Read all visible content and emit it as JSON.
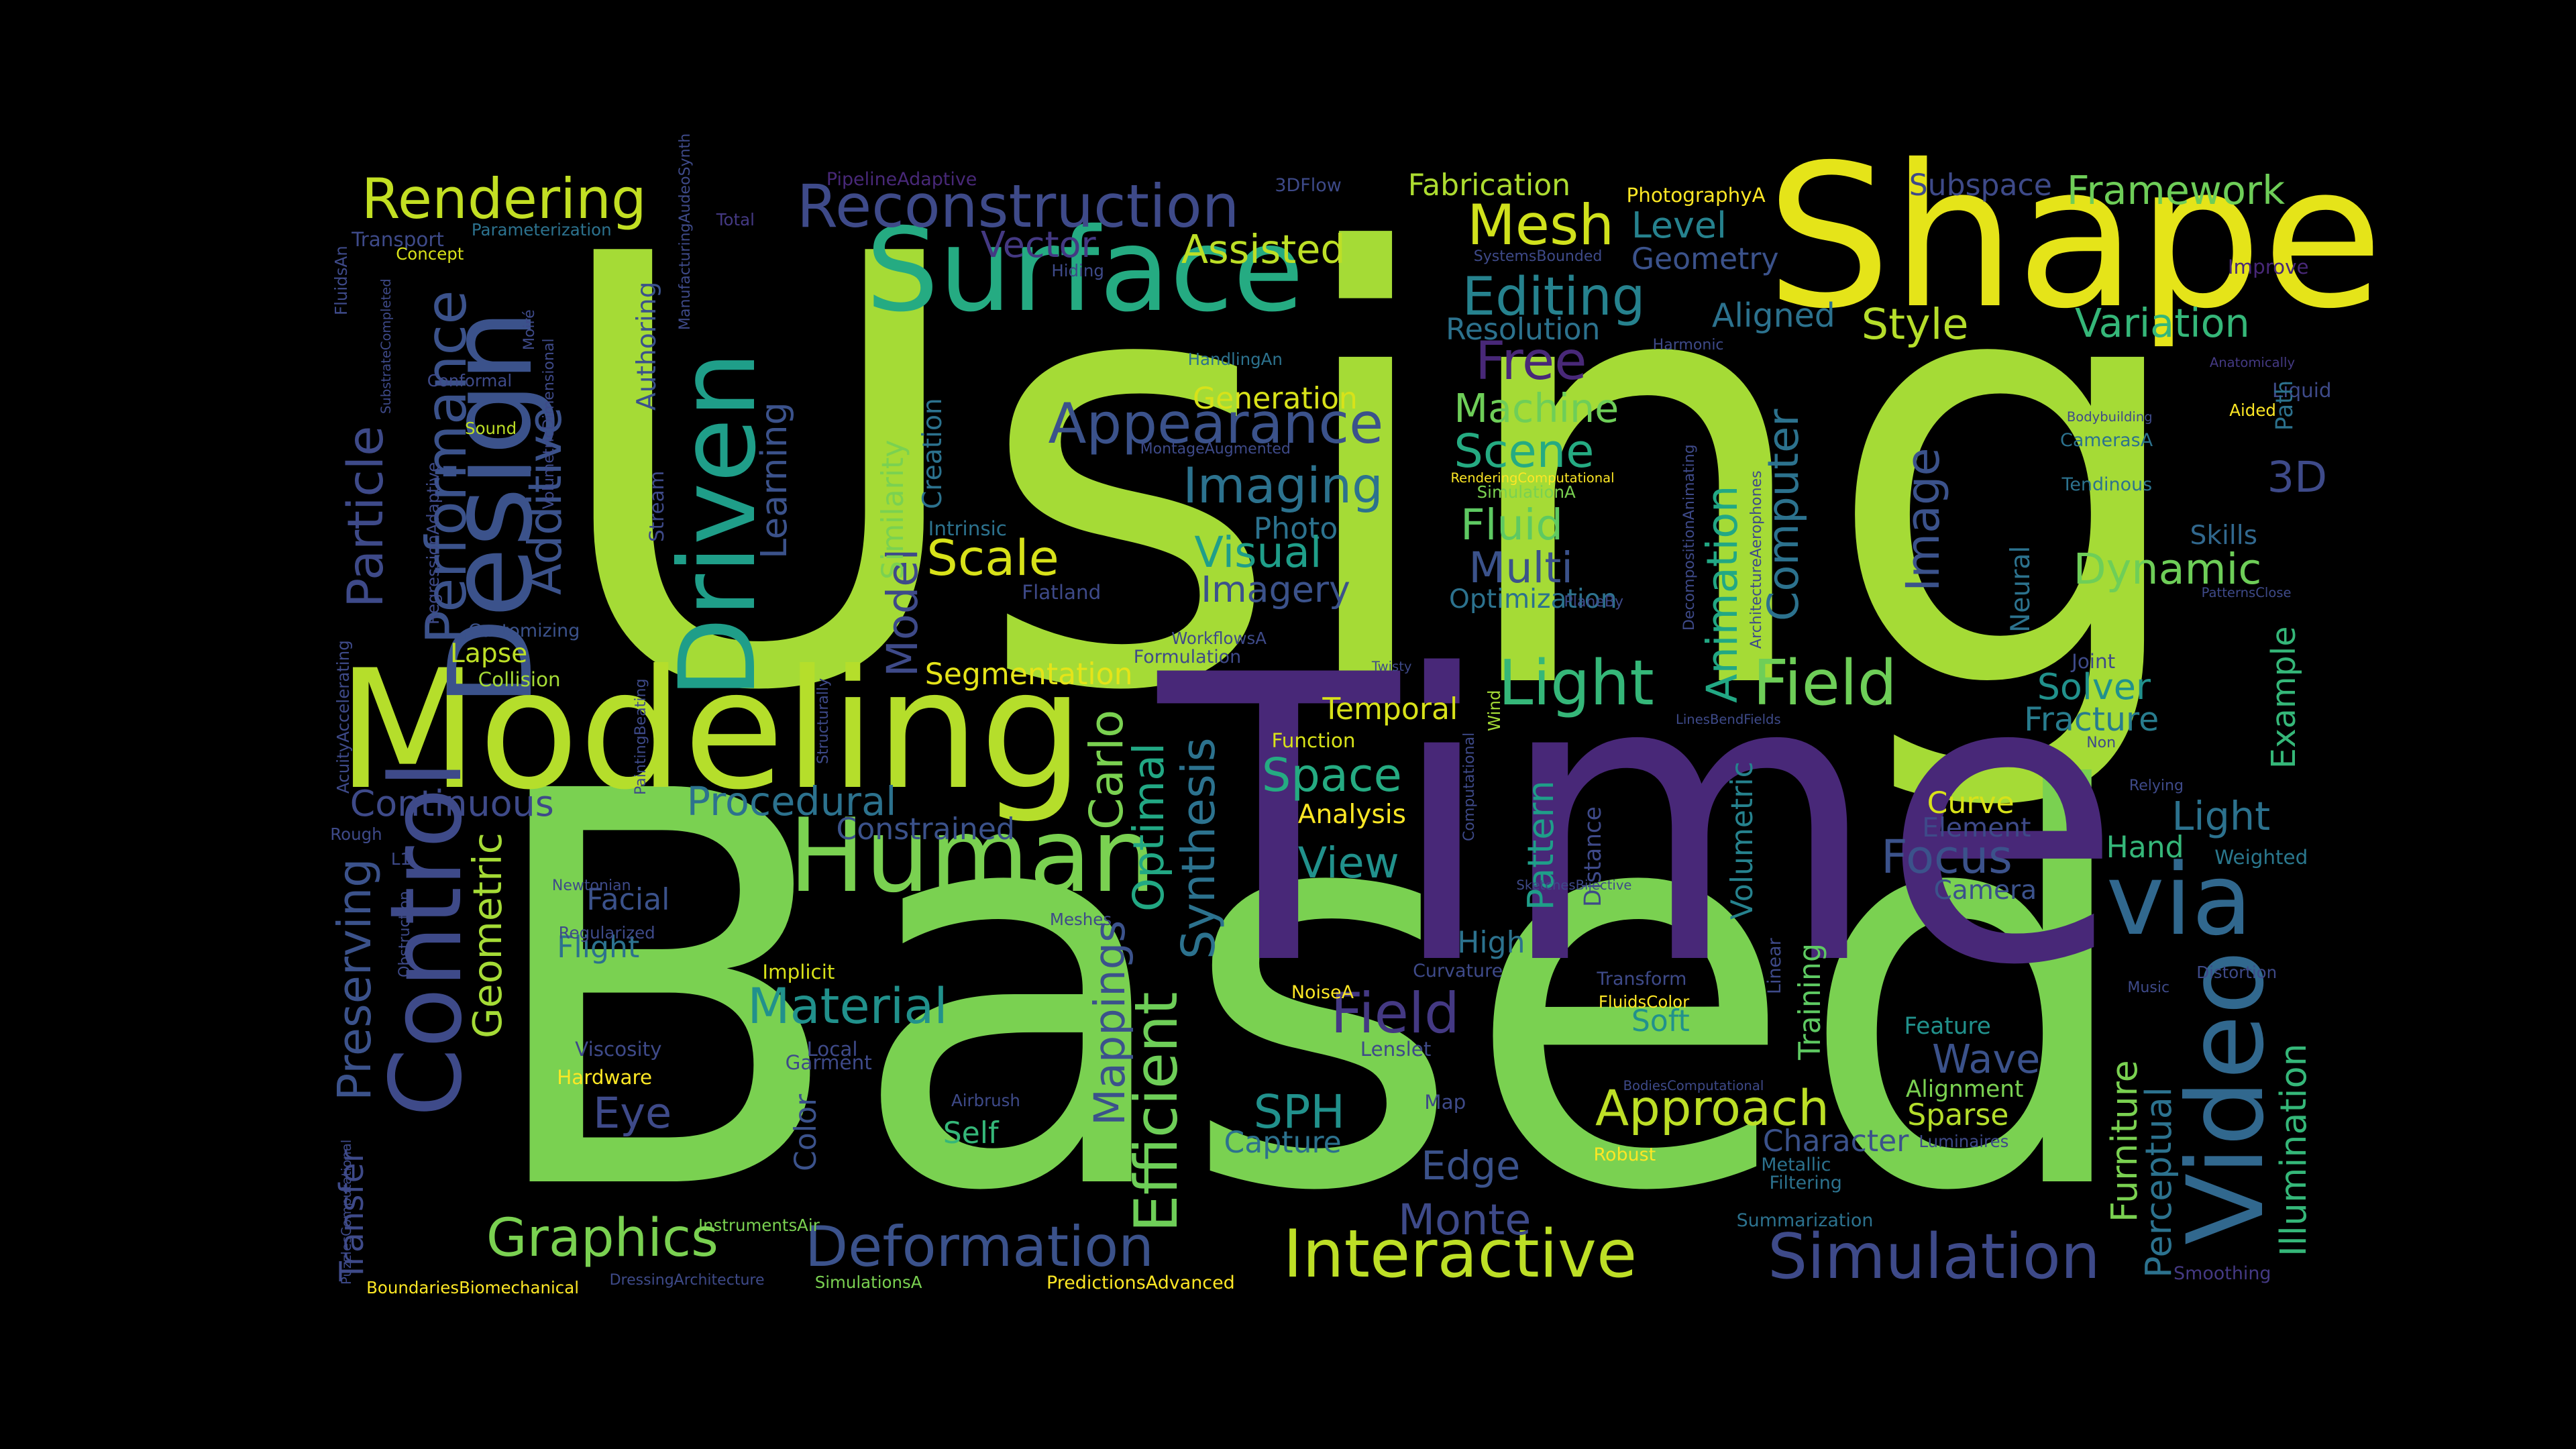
{
  "colors": {
    "background": "#000000",
    "c1": "#440154",
    "c2": "#472f7d",
    "c3": "#3b518b",
    "c4": "#2c718e",
    "c5": "#21908d",
    "c6": "#27ad81",
    "c7": "#5cc863",
    "c8": "#aadc32",
    "c9": "#fde725"
  },
  "words": [
    {
      "t": "Using",
      "c": "#a5db36"
    },
    {
      "t": "Based",
      "c": "#7ad151"
    },
    {
      "t": "Time",
      "c": "#482878"
    },
    {
      "t": "Shape",
      "c": "#e5e419"
    },
    {
      "t": "Surface",
      "c": "#25ab82"
    },
    {
      "t": "Modeling",
      "c": "#b5de2b"
    },
    {
      "t": "Human",
      "c": "#7ad151"
    },
    {
      "t": "Design",
      "c": "#3b528b"
    },
    {
      "t": "Driven",
      "c": "#1f9e89"
    },
    {
      "t": "Control",
      "c": "#3e4a89"
    },
    {
      "t": "via",
      "c": "#31688e"
    },
    {
      "t": "Video",
      "c": "#31688e"
    },
    {
      "t": "Reconstruction",
      "c": "#3e4a89"
    },
    {
      "t": "Rendering",
      "c": "#c2df23"
    },
    {
      "t": "Performance",
      "c": "#3b528b"
    },
    {
      "t": "Particle",
      "c": "#3e4a89"
    },
    {
      "t": "Additive",
      "c": "#3b528b"
    },
    {
      "t": "Framework",
      "c": "#6ece58"
    },
    {
      "t": "Subspace",
      "c": "#3e4a89"
    },
    {
      "t": "Fabrication",
      "c": "#addc30"
    },
    {
      "t": "Mesh",
      "c": "#d0e11c"
    },
    {
      "t": "Level",
      "c": "#26828e"
    },
    {
      "t": "Geometry",
      "c": "#3b528b"
    },
    {
      "t": "Editing",
      "c": "#26828e"
    },
    {
      "t": "Resolution",
      "c": "#2c728e"
    },
    {
      "t": "Aligned",
      "c": "#2c728e"
    },
    {
      "t": "Style",
      "c": "#b5de2b"
    },
    {
      "t": "Variation",
      "c": "#35b779"
    },
    {
      "t": "Free",
      "c": "#482878"
    },
    {
      "t": "Machine",
      "c": "#6ece58"
    },
    {
      "t": "Scene",
      "c": "#25ab82"
    },
    {
      "t": "Appearance",
      "c": "#3b528b"
    },
    {
      "t": "Vector",
      "c": "#443983"
    },
    {
      "t": "Assisted",
      "c": "#bddf26"
    },
    {
      "t": "Generation",
      "c": "#d8e219"
    },
    {
      "t": "Imaging",
      "c": "#2c728e"
    },
    {
      "t": "Photo",
      "c": "#2c728e"
    },
    {
      "t": "Visual",
      "c": "#1f9e89"
    },
    {
      "t": "Imagery",
      "c": "#3b528b"
    },
    {
      "t": "Scale",
      "c": "#d8e219"
    },
    {
      "t": "Fluid",
      "c": "#5ec962"
    },
    {
      "t": "Multi",
      "c": "#3b528b"
    },
    {
      "t": "Optimization",
      "c": "#2c728e"
    },
    {
      "t": "Image",
      "c": "#3b528b"
    },
    {
      "t": "Computer",
      "c": "#2c728e"
    },
    {
      "t": "Animation",
      "c": "#22a884"
    },
    {
      "t": "Light",
      "c": "#35b779"
    },
    {
      "t": "Field",
      "c": "#6ece58"
    },
    {
      "t": "3D",
      "c": "#3e4a89"
    },
    {
      "t": "Dynamic",
      "c": "#6ece58"
    },
    {
      "t": "Skills",
      "c": "#31688e"
    },
    {
      "t": "Solver",
      "c": "#21918c"
    },
    {
      "t": "Fracture",
      "c": "#287c8e"
    },
    {
      "t": "Example",
      "c": "#35b779"
    },
    {
      "t": "Segmentation",
      "c": "#e5e419"
    },
    {
      "t": "Temporal",
      "c": "#d8e219"
    },
    {
      "t": "Space",
      "c": "#25ab82"
    },
    {
      "t": "Analysis",
      "c": "#fde725"
    },
    {
      "t": "View",
      "c": "#21918c"
    },
    {
      "t": "Pattern",
      "c": "#1f9e89"
    },
    {
      "t": "Volumetric",
      "c": "#26828e"
    },
    {
      "t": "Focus",
      "c": "#3b528b"
    },
    {
      "t": "Curve",
      "c": "#d8e219"
    },
    {
      "t": "Element",
      "c": "#3e4a89"
    },
    {
      "t": "Camera",
      "c": "#3b528b"
    },
    {
      "t": "Hand",
      "c": "#35b779"
    },
    {
      "t": "Light",
      "c": "#2c728e"
    },
    {
      "t": "Weighted",
      "c": "#2a788e"
    },
    {
      "t": "Continuous",
      "c": "#3e4a89"
    },
    {
      "t": "Procedural",
      "c": "#2c728e"
    },
    {
      "t": "Constrained",
      "c": "#3b528b"
    },
    {
      "t": "Carlo",
      "c": "#7ad151"
    },
    {
      "t": "Optimal",
      "c": "#22a884"
    },
    {
      "t": "Synthesis",
      "c": "#2c728e"
    },
    {
      "t": "Efficient",
      "c": "#6ece58"
    },
    {
      "t": "Mappings",
      "c": "#3b528b"
    },
    {
      "t": "Material",
      "c": "#21918c"
    },
    {
      "t": "Facial",
      "c": "#3b528b"
    },
    {
      "t": "Flight",
      "c": "#2c728e"
    },
    {
      "t": "Geometric",
      "c": "#a5db36"
    },
    {
      "t": "Preserving",
      "c": "#3b528b"
    },
    {
      "t": "Eye",
      "c": "#3e4a89"
    },
    {
      "t": "Graphics",
      "c": "#7ad151"
    },
    {
      "t": "Deformation",
      "c": "#3b528b"
    },
    {
      "t": "Interactive",
      "c": "#bddf26"
    },
    {
      "t": "Simulation",
      "c": "#3e4a89"
    },
    {
      "t": "Monte",
      "c": "#3e4a89"
    },
    {
      "t": "Edge",
      "c": "#3b528b"
    },
    {
      "t": "SPH",
      "c": "#21918c"
    },
    {
      "t": "Capture",
      "c": "#2c728e"
    },
    {
      "t": "Self",
      "c": "#35b779"
    },
    {
      "t": "Field",
      "c": "#443983"
    },
    {
      "t": "Approach",
      "c": "#bddf26"
    },
    {
      "t": "Character",
      "c": "#3b528b"
    },
    {
      "t": "Soft",
      "c": "#21918c"
    },
    {
      "t": "High",
      "c": "#2c728e"
    },
    {
      "t": "Wave",
      "c": "#3b528b"
    },
    {
      "t": "Alignment",
      "c": "#7ad151"
    },
    {
      "t": "Sparse",
      "c": "#b5de2b"
    },
    {
      "t": "Feature",
      "c": "#21918c"
    },
    {
      "t": "Furniture",
      "c": "#7ad151"
    },
    {
      "t": "Perceptual",
      "c": "#2c728e"
    },
    {
      "t": "Illumination",
      "c": "#35b779"
    },
    {
      "t": "Training",
      "c": "#5ec962"
    },
    {
      "t": "Learning",
      "c": "#3b528b"
    },
    {
      "t": "Model",
      "c": "#3e4a89"
    },
    {
      "t": "Similarity",
      "c": "#7ad151"
    },
    {
      "t": "Creation",
      "c": "#2c728e"
    },
    {
      "t": "Color",
      "c": "#3b528b"
    },
    {
      "t": "Transfer",
      "c": "#3e4a89"
    },
    {
      "t": "Lapse",
      "c": "#bddf26"
    },
    {
      "t": "Collision",
      "c": "#a5db36"
    },
    {
      "t": "Customizing",
      "c": "#3b528b"
    },
    {
      "t": "Authoring",
      "c": "#3b528b"
    },
    {
      "t": "Stream",
      "c": "#3e4a89"
    },
    {
      "t": "Intrinsic",
      "c": "#2c728e"
    },
    {
      "t": "Flatland",
      "c": "#3e4a89"
    },
    {
      "t": "Formulation",
      "c": "#3e4a89"
    },
    {
      "t": "Function",
      "c": "#d8e219"
    },
    {
      "t": "Distance",
      "c": "#3e4a89"
    },
    {
      "t": "Hardware",
      "c": "#fde725"
    },
    {
      "t": "Viscosity",
      "c": "#3e4a89"
    },
    {
      "t": "Implicit",
      "c": "#d8e219"
    },
    {
      "t": "Garment",
      "c": "#3e4a89"
    },
    {
      "t": "Local",
      "c": "#3e4a89"
    },
    {
      "t": "Lenslet",
      "c": "#3e4a89"
    },
    {
      "t": "Map",
      "c": "#3e4a89"
    },
    {
      "t": "Curvature",
      "c": "#3e4a89"
    },
    {
      "t": "Transform",
      "c": "#3e4a89"
    },
    {
      "t": "Linear",
      "c": "#3e4a89"
    },
    {
      "t": "Robust",
      "c": "#fde725"
    },
    {
      "t": "Metallic",
      "c": "#2c728e"
    },
    {
      "t": "Filtering",
      "c": "#2c728e"
    },
    {
      "t": "Summarization",
      "c": "#2c728e"
    },
    {
      "t": "Smoothing",
      "c": "#443983"
    },
    {
      "t": "Distortion",
      "c": "#3e4a89"
    },
    {
      "t": "Music",
      "c": "#3e4a89"
    },
    {
      "t": "Joint",
      "c": "#3e4a89"
    },
    {
      "t": "Non",
      "c": "#3e4a89"
    },
    {
      "t": "Relying",
      "c": "#3e4a89"
    },
    {
      "t": "Neural",
      "c": "#2c728e"
    },
    {
      "t": "Tendinous",
      "c": "#2c728e"
    },
    {
      "t": "CamerasA",
      "c": "#2c728e"
    },
    {
      "t": "Liquid",
      "c": "#3e4a89"
    },
    {
      "t": "Aided",
      "c": "#fde725"
    },
    {
      "t": "Path",
      "c": "#2c728e"
    },
    {
      "t": "Improve",
      "c": "#482878"
    },
    {
      "t": "Harmonic",
      "c": "#3e4a89"
    },
    {
      "t": "Anatomically",
      "c": "#443983"
    },
    {
      "t": "Bodybuilding",
      "c": "#3e4a89"
    },
    {
      "t": "PatternsClose",
      "c": "#3e4a89"
    },
    {
      "t": "PhotographyA",
      "c": "#fde725"
    },
    {
      "t": "SystemsBounded",
      "c": "#3e4a89"
    },
    {
      "t": "3DFlow",
      "c": "#3e4a89"
    },
    {
      "t": "PipelineAdaptive",
      "c": "#482878"
    },
    {
      "t": "Total",
      "c": "#443983"
    },
    {
      "t": "Parameterization",
      "c": "#2c728e"
    },
    {
      "t": "Transport",
      "c": "#3e4a89"
    },
    {
      "t": "Concept",
      "c": "#d8e219"
    },
    {
      "t": "FluidsAn",
      "c": "#3e4a89"
    },
    {
      "t": "SubstrateCompleted",
      "c": "#3e4a89"
    },
    {
      "t": "ManufacturingAudeoSynth",
      "c": "#3e4a89"
    },
    {
      "t": "Moiré",
      "c": "#3e4a89"
    },
    {
      "t": "VolumetricDimensional",
      "c": "#3e4a89"
    },
    {
      "t": "Conformal",
      "c": "#3e4a89"
    },
    {
      "t": "Sound",
      "c": "#bddf26"
    },
    {
      "t": "RegressionAdaptive",
      "c": "#3e4a89"
    },
    {
      "t": "Hiding",
      "c": "#3e4a89"
    },
    {
      "t": "HandlingAn",
      "c": "#2c728e"
    },
    {
      "t": "MontageAugmented",
      "c": "#3e4a89"
    },
    {
      "t": "RenderingComputational",
      "c": "#fde725"
    },
    {
      "t": "SimulationA",
      "c": "#7ad151"
    },
    {
      "t": "ArchitectureAerophones",
      "c": "#3e4a89"
    },
    {
      "t": "DecompositionAnimating",
      "c": "#3e4a89"
    },
    {
      "t": "PlaneBy",
      "c": "#3e4a89"
    },
    {
      "t": "WorkflowsA",
      "c": "#3e4a89"
    },
    {
      "t": "Twisty",
      "c": "#3e4a89"
    },
    {
      "t": "Wind",
      "c": "#a5db36"
    },
    {
      "t": "LinesBendFields",
      "c": "#3e4a89"
    },
    {
      "t": "Computational",
      "c": "#3e4a89"
    },
    {
      "t": "SketchesBijective",
      "c": "#3e4a89"
    },
    {
      "t": "NoiseA",
      "c": "#fde725"
    },
    {
      "t": "FluidsColor",
      "c": "#fde725"
    },
    {
      "t": "BodiesComputational",
      "c": "#3e4a89"
    },
    {
      "t": "Luminaires",
      "c": "#3e4a89"
    },
    {
      "t": "Airbrush",
      "c": "#3e4a89"
    },
    {
      "t": "InstrumentsAir",
      "c": "#7ad151"
    },
    {
      "t": "SimulationsA",
      "c": "#7ad151"
    },
    {
      "t": "PredictionsAdvanced",
      "c": "#fde725"
    },
    {
      "t": "BoundariesBiomechanical",
      "c": "#fde725"
    },
    {
      "t": "DressingArchitecture",
      "c": "#3e4a89"
    },
    {
      "t": "PuzzlesComputational",
      "c": "#3e4a89"
    },
    {
      "t": "Meshes",
      "c": "#3e4a89"
    },
    {
      "t": "Newtonian",
      "c": "#3e4a89"
    },
    {
      "t": "Regularized",
      "c": "#3e4a89"
    },
    {
      "t": "Obstruction",
      "c": "#3e4a89"
    },
    {
      "t": "Rough",
      "c": "#3e4a89"
    },
    {
      "t": "L1",
      "c": "#3e4a89"
    },
    {
      "t": "AcuityAccelerating",
      "c": "#3e4a89"
    },
    {
      "t": "PaintingBeating",
      "c": "#3e4a89"
    },
    {
      "t": "Structurally",
      "c": "#3e4a89"
    }
  ]
}
